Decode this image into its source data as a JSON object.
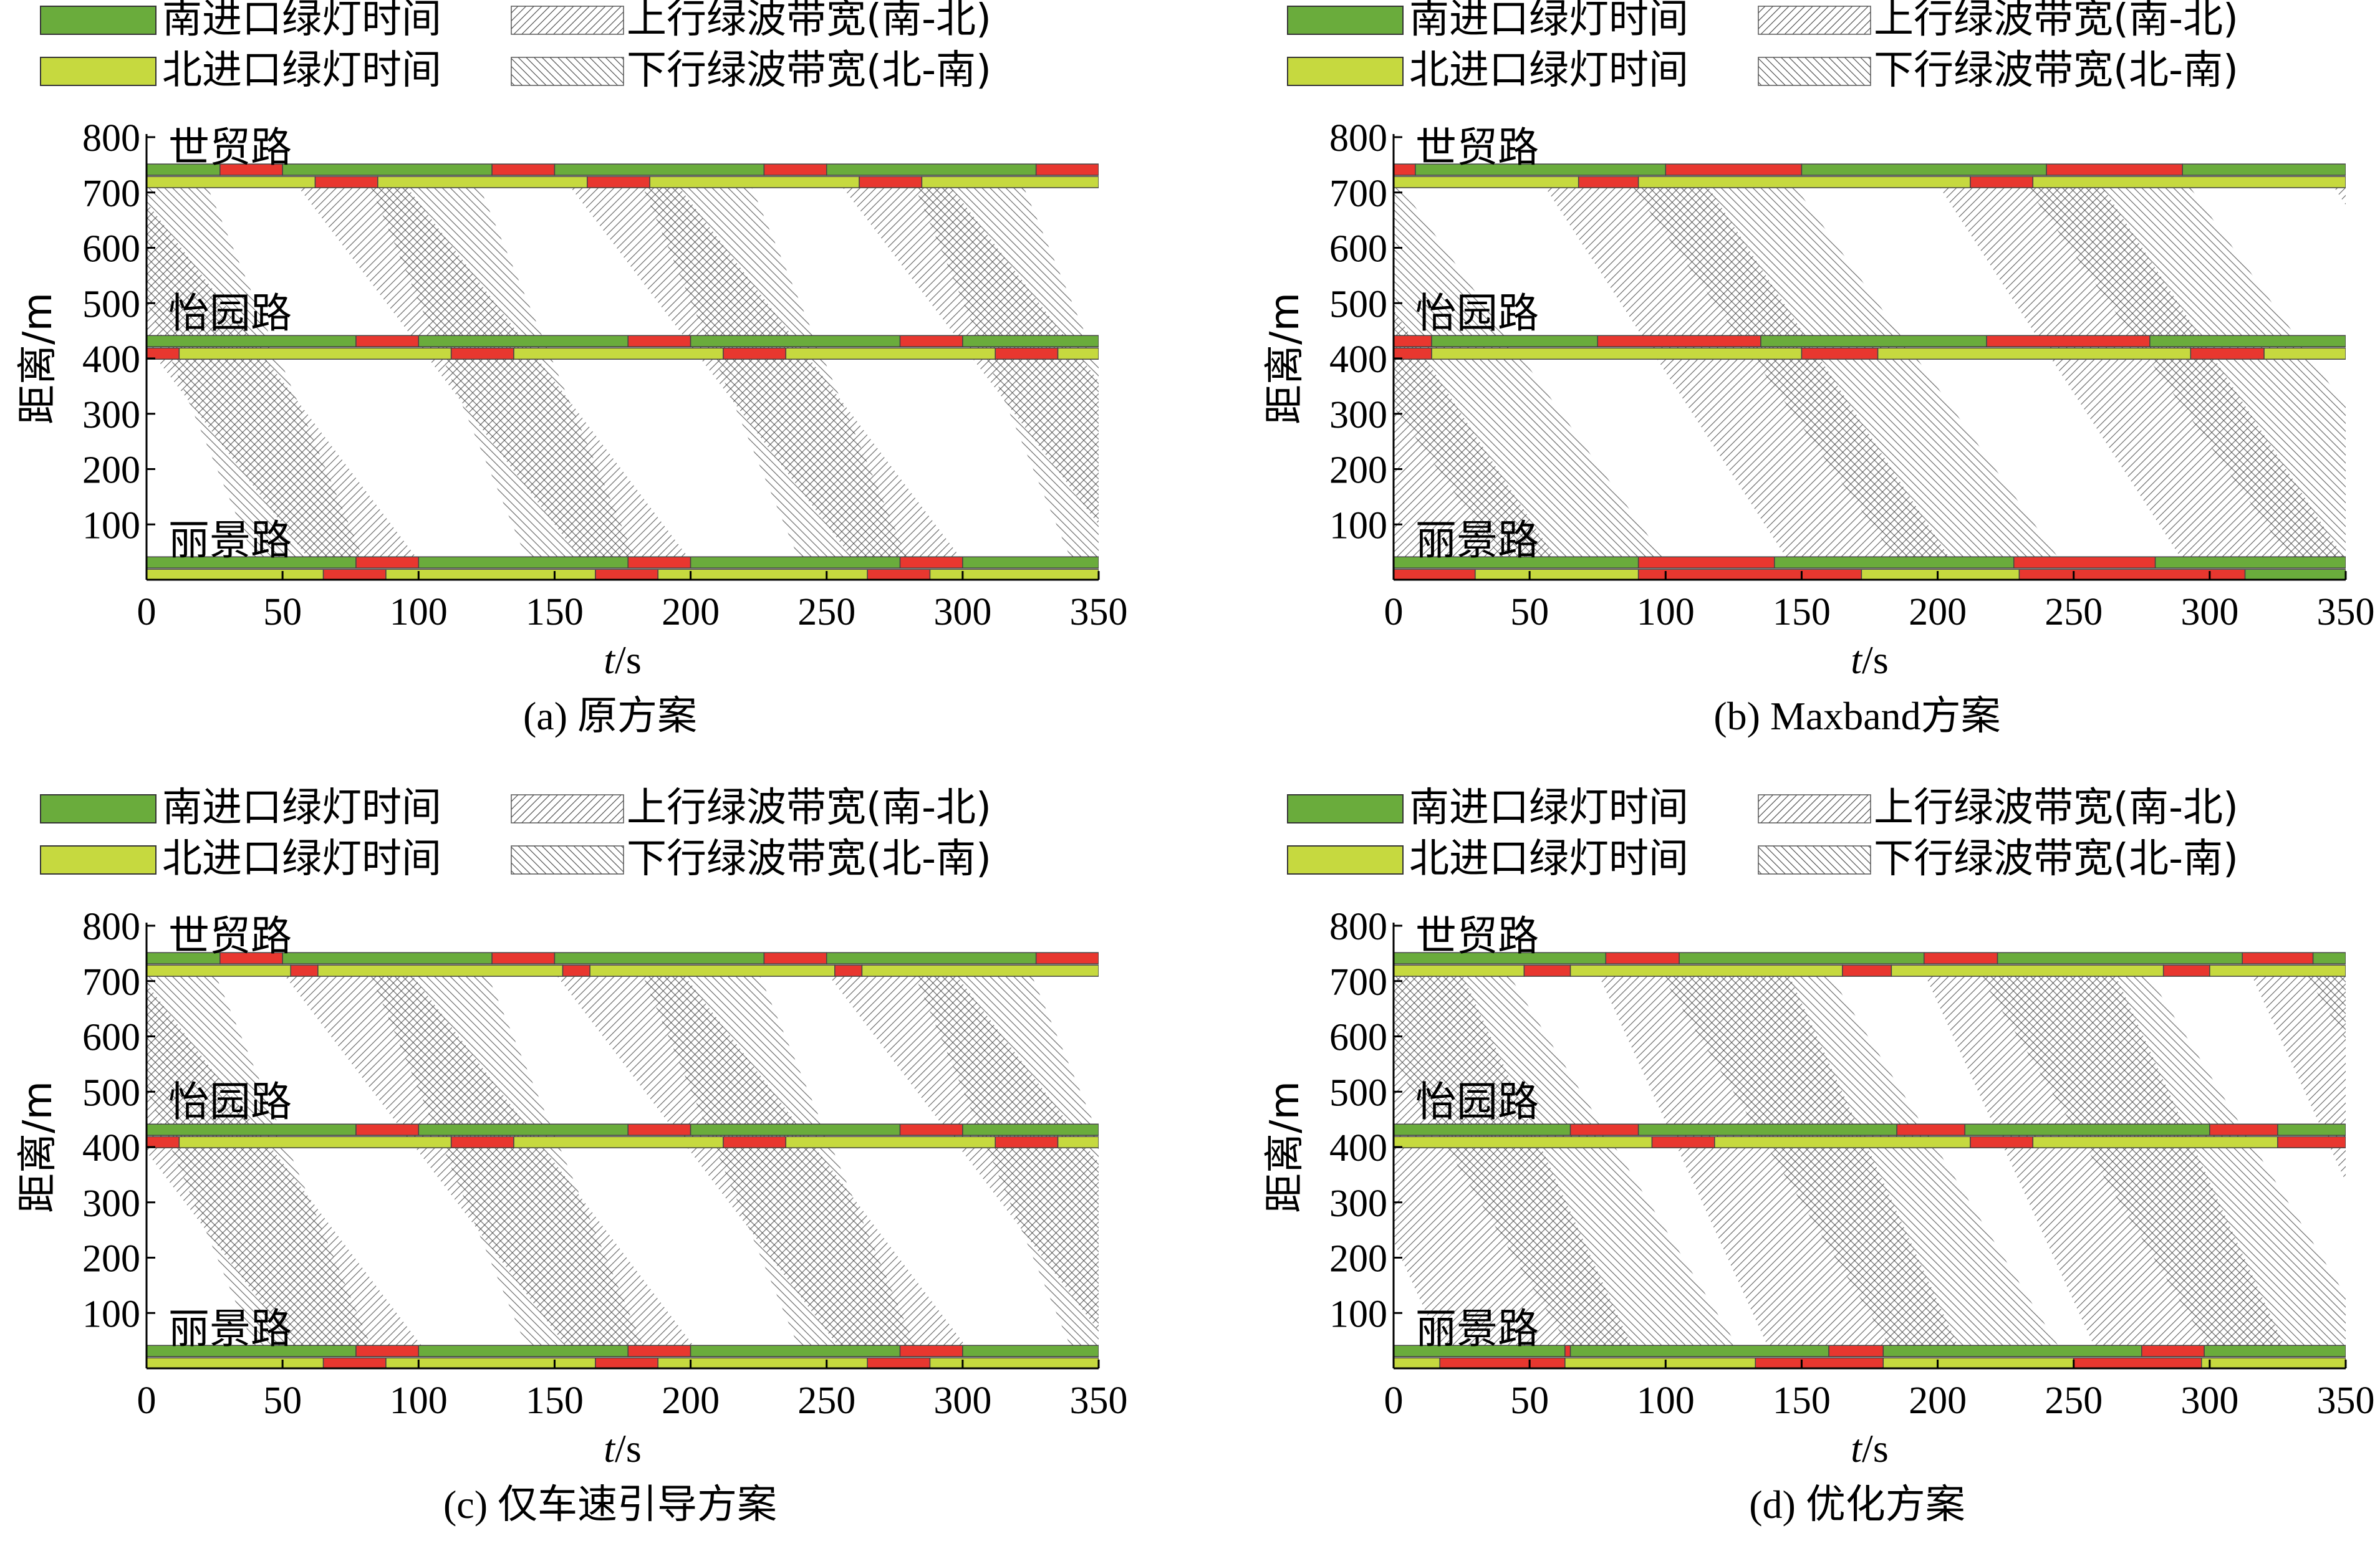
{
  "legend": {
    "south_green": "南进口绿灯时间",
    "north_green": "北进口绿灯时间",
    "up_band": "上行绿波带宽(南-北)",
    "down_band": "下行绿波带宽(北-南)"
  },
  "colors": {
    "south_green": "#6aac3c",
    "north_green": "#c6d93f",
    "red": "#e8372f",
    "band": "#666666",
    "axis": "#000000"
  },
  "axes": {
    "xlabel_italic": "t",
    "xlabel_unit": "/s",
    "ylabel": "距离/m",
    "xlim": [
      0,
      350
    ],
    "ylim": [
      0,
      800
    ],
    "xticks": [
      0,
      50,
      100,
      150,
      200,
      250,
      300,
      350
    ],
    "yticks": [
      100,
      200,
      300,
      400,
      500,
      600,
      700,
      800
    ]
  },
  "intersections": [
    {
      "name": "世贸路",
      "pos": 730
    },
    {
      "name": "怡园路",
      "pos": 420
    },
    {
      "name": "丽景路",
      "pos": 20
    }
  ],
  "chart_data": [
    {
      "type": "time-space diagram",
      "caption": "(a) 原方案",
      "signals": [
        {
          "intersection": "世贸路",
          "south_entry": [
            [
              "g",
              0,
              27
            ],
            [
              "r",
              27,
              50
            ],
            [
              "g",
              50,
              127
            ],
            [
              "r",
              127,
              150
            ],
            [
              "g",
              150,
              227
            ],
            [
              "r",
              227,
              250
            ],
            [
              "g",
              250,
              327
            ],
            [
              "r",
              327,
              350
            ]
          ],
          "north_entry": [
            [
              "n",
              0,
              62
            ],
            [
              "r",
              62,
              85
            ],
            [
              "n",
              85,
              162
            ],
            [
              "r",
              162,
              185
            ],
            [
              "n",
              185,
              262
            ],
            [
              "r",
              262,
              285
            ],
            [
              "n",
              285,
              350
            ]
          ]
        },
        {
          "intersection": "怡园路",
          "south_entry": [
            [
              "g",
              0,
              77
            ],
            [
              "r",
              77,
              100
            ],
            [
              "g",
              100,
              177
            ],
            [
              "r",
              177,
              200
            ],
            [
              "g",
              200,
              277
            ],
            [
              "r",
              277,
              300
            ],
            [
              "g",
              300,
              350
            ]
          ],
          "north_entry": [
            [
              "r",
              0,
              12
            ],
            [
              "n",
              12,
              112
            ],
            [
              "r",
              112,
              135
            ],
            [
              "n",
              135,
              212
            ],
            [
              "r",
              212,
              235
            ],
            [
              "n",
              235,
              312
            ],
            [
              "r",
              312,
              335
            ],
            [
              "n",
              335,
              350
            ]
          ]
        },
        {
          "intersection": "丽景路",
          "south_entry": [
            [
              "g",
              0,
              77
            ],
            [
              "r",
              77,
              100
            ],
            [
              "g",
              100,
              177
            ],
            [
              "r",
              177,
              200
            ],
            [
              "g",
              200,
              277
            ],
            [
              "r",
              277,
              300
            ],
            [
              "g",
              300,
              350
            ]
          ],
          "north_entry": [
            [
              "n",
              0,
              65
            ],
            [
              "r",
              65,
              88
            ],
            [
              "n",
              88,
              165
            ],
            [
              "r",
              165,
              188
            ],
            [
              "n",
              188,
              265
            ],
            [
              "r",
              265,
              288
            ],
            [
              "n",
              288,
              350
            ]
          ]
        }
      ],
      "up_bands": [
        [
          60,
          100,
          -45,
          -5
        ],
        [
          160,
          200,
          55,
          95
        ],
        [
          260,
          300,
          155,
          195
        ],
        [
          360,
          400,
          255,
          295
        ],
        [
          460,
          500,
          355,
          395
        ]
      ],
      "down_bands": [
        [
          -18,
          22,
          40,
          80
        ],
        [
          82,
          122,
          140,
          180
        ],
        [
          182,
          222,
          240,
          280
        ],
        [
          282,
          322,
          340,
          380
        ]
      ]
    },
    {
      "type": "time-space diagram",
      "caption": "(b) Maxband方案",
      "signals": [
        {
          "intersection": "世贸路",
          "south_entry": [
            [
              "r",
              0,
              8
            ],
            [
              "g",
              8,
              100
            ],
            [
              "r",
              100,
              150
            ],
            [
              "g",
              150,
              240
            ],
            [
              "r",
              240,
              290
            ],
            [
              "g",
              290,
              350
            ]
          ],
          "north_entry": [
            [
              "n",
              0,
              68
            ],
            [
              "r",
              68,
              90
            ],
            [
              "n",
              90,
              212
            ],
            [
              "r",
              212,
              235
            ],
            [
              "n",
              235,
              350
            ]
          ]
        },
        {
          "intersection": "怡园路",
          "south_entry": [
            [
              "r",
              0,
              14
            ],
            [
              "g",
              14,
              75
            ],
            [
              "r",
              75,
              135
            ],
            [
              "g",
              135,
              218
            ],
            [
              "r",
              218,
              278
            ],
            [
              "g",
              278,
              350
            ]
          ],
          "north_entry": [
            [
              "r",
              0,
              14
            ],
            [
              "n",
              14,
              150
            ],
            [
              "r",
              150,
              178
            ],
            [
              "n",
              178,
              293
            ],
            [
              "r",
              293,
              320
            ],
            [
              "n",
              320,
              350
            ]
          ]
        },
        {
          "intersection": "丽景路",
          "south_entry": [
            [
              "g",
              0,
              90
            ],
            [
              "r",
              90,
              140
            ],
            [
              "g",
              140,
              228
            ],
            [
              "r",
              228,
              280
            ],
            [
              "g",
              280,
              350
            ]
          ],
          "north_entry": [
            [
              "r",
              0,
              30
            ],
            [
              "n",
              30,
              90
            ],
            [
              "r",
              90,
              172
            ],
            [
              "n",
              172,
              230
            ],
            [
              "r",
              230,
              313
            ],
            [
              "g",
              313,
              350
            ]
          ]
        }
      ],
      "up_bands": [
        [
          0,
          60,
          -90,
          -30
        ],
        [
          145,
          205,
          55,
          115
        ],
        [
          290,
          350,
          200,
          260
        ],
        [
          435,
          495,
          345,
          405
        ]
      ],
      "down_bands": [
        [
          -58,
          2,
          40,
          100
        ],
        [
          87,
          147,
          185,
          245
        ],
        [
          232,
          292,
          330,
          390
        ]
      ]
    },
    {
      "type": "time-space diagram",
      "caption": "(c) 仅车速引导方案",
      "signals": [
        {
          "intersection": "世贸路",
          "south_entry": [
            [
              "g",
              0,
              27
            ],
            [
              "r",
              27,
              50
            ],
            [
              "g",
              50,
              127
            ],
            [
              "r",
              127,
              150
            ],
            [
              "g",
              150,
              227
            ],
            [
              "r",
              227,
              250
            ],
            [
              "g",
              250,
              327
            ],
            [
              "r",
              327,
              350
            ]
          ],
          "north_entry": [
            [
              "n",
              0,
              53
            ],
            [
              "r",
              53,
              63
            ],
            [
              "n",
              63,
              153
            ],
            [
              "r",
              153,
              163
            ],
            [
              "n",
              163,
              253
            ],
            [
              "r",
              253,
              263
            ],
            [
              "n",
              263,
              350
            ]
          ]
        },
        {
          "intersection": "怡园路",
          "south_entry": [
            [
              "g",
              0,
              77
            ],
            [
              "r",
              77,
              100
            ],
            [
              "g",
              100,
              177
            ],
            [
              "r",
              177,
              200
            ],
            [
              "g",
              200,
              277
            ],
            [
              "r",
              277,
              300
            ],
            [
              "g",
              300,
              350
            ]
          ],
          "north_entry": [
            [
              "r",
              0,
              12
            ],
            [
              "n",
              12,
              112
            ],
            [
              "r",
              112,
              135
            ],
            [
              "n",
              135,
              212
            ],
            [
              "r",
              212,
              235
            ],
            [
              "n",
              235,
              312
            ],
            [
              "r",
              312,
              335
            ],
            [
              "n",
              335,
              350
            ]
          ]
        },
        {
          "intersection": "丽景路",
          "south_entry": [
            [
              "g",
              0,
              77
            ],
            [
              "r",
              77,
              100
            ],
            [
              "g",
              100,
              177
            ],
            [
              "r",
              177,
              200
            ],
            [
              "g",
              200,
              277
            ],
            [
              "r",
              277,
              300
            ],
            [
              "g",
              300,
              350
            ]
          ],
          "north_entry": [
            [
              "n",
              0,
              65
            ],
            [
              "r",
              65,
              88
            ],
            [
              "n",
              88,
              165
            ],
            [
              "r",
              165,
              188
            ],
            [
              "n",
              188,
              265
            ],
            [
              "r",
              265,
              288
            ],
            [
              "n",
              288,
              350
            ]
          ]
        }
      ],
      "up_bands": [
        [
          55,
          102,
          -50,
          -3
        ],
        [
          155,
          202,
          50,
          97
        ],
        [
          255,
          302,
          150,
          197
        ],
        [
          355,
          402,
          250,
          297
        ],
        [
          455,
          502,
          350,
          397
        ]
      ],
      "down_bands": [
        [
          -18,
          25,
          40,
          83
        ],
        [
          82,
          125,
          140,
          183
        ],
        [
          182,
          225,
          240,
          283
        ],
        [
          282,
          325,
          340,
          383
        ]
      ]
    },
    {
      "type": "time-space diagram",
      "caption": "(d) 优化方案",
      "signals": [
        {
          "intersection": "世贸路",
          "south_entry": [
            [
              "g",
              0,
              78
            ],
            [
              "r",
              78,
              105
            ],
            [
              "g",
              105,
              195
            ],
            [
              "r",
              195,
              222
            ],
            [
              "g",
              222,
              312
            ],
            [
              "r",
              312,
              338
            ],
            [
              "g",
              338,
              350
            ]
          ],
          "north_entry": [
            [
              "n",
              0,
              48
            ],
            [
              "r",
              48,
              65
            ],
            [
              "n",
              65,
              165
            ],
            [
              "r",
              165,
              183
            ],
            [
              "n",
              183,
              283
            ],
            [
              "r",
              283,
              300
            ],
            [
              "n",
              300,
              350
            ]
          ]
        },
        {
          "intersection": "怡园路",
          "south_entry": [
            [
              "g",
              0,
              65
            ],
            [
              "r",
              65,
              90
            ],
            [
              "g",
              90,
              185
            ],
            [
              "r",
              185,
              210
            ],
            [
              "g",
              210,
              300
            ],
            [
              "r",
              300,
              325
            ],
            [
              "g",
              325,
              350
            ]
          ],
          "north_entry": [
            [
              "n",
              0,
              95
            ],
            [
              "r",
              95,
              118
            ],
            [
              "n",
              118,
              212
            ],
            [
              "r",
              212,
              235
            ],
            [
              "n",
              235,
              325
            ],
            [
              "r",
              325,
              350
            ]
          ]
        },
        {
          "intersection": "丽景路",
          "south_entry": [
            [
              "g",
              0,
              63
            ],
            [
              "r",
              63,
              65
            ],
            [
              "g",
              65,
              160
            ],
            [
              "r",
              160,
              180
            ],
            [
              "g",
              180,
              275
            ],
            [
              "r",
              275,
              298
            ],
            [
              "g",
              298,
              350
            ]
          ],
          "north_entry": [
            [
              "n",
              0,
              17
            ],
            [
              "r",
              17,
              63
            ],
            [
              "n",
              63,
              133
            ],
            [
              "r",
              133,
              180
            ],
            [
              "n",
              180,
              250
            ],
            [
              "r",
              250,
              297
            ],
            [
              "n",
              297,
              350
            ]
          ]
        }
      ],
      "up_bands": [
        [
          18,
          88,
          -45,
          25
        ],
        [
          138,
          208,
          75,
          145
        ],
        [
          258,
          328,
          195,
          265
        ],
        [
          378,
          448,
          315,
          385
        ]
      ],
      "down_bands": [
        [
          -20,
          42,
          65,
          127
        ],
        [
          98,
          160,
          183,
          245
        ],
        [
          215,
          277,
          300,
          362
        ],
        [
          335,
          397,
          420,
          482
        ]
      ]
    }
  ]
}
